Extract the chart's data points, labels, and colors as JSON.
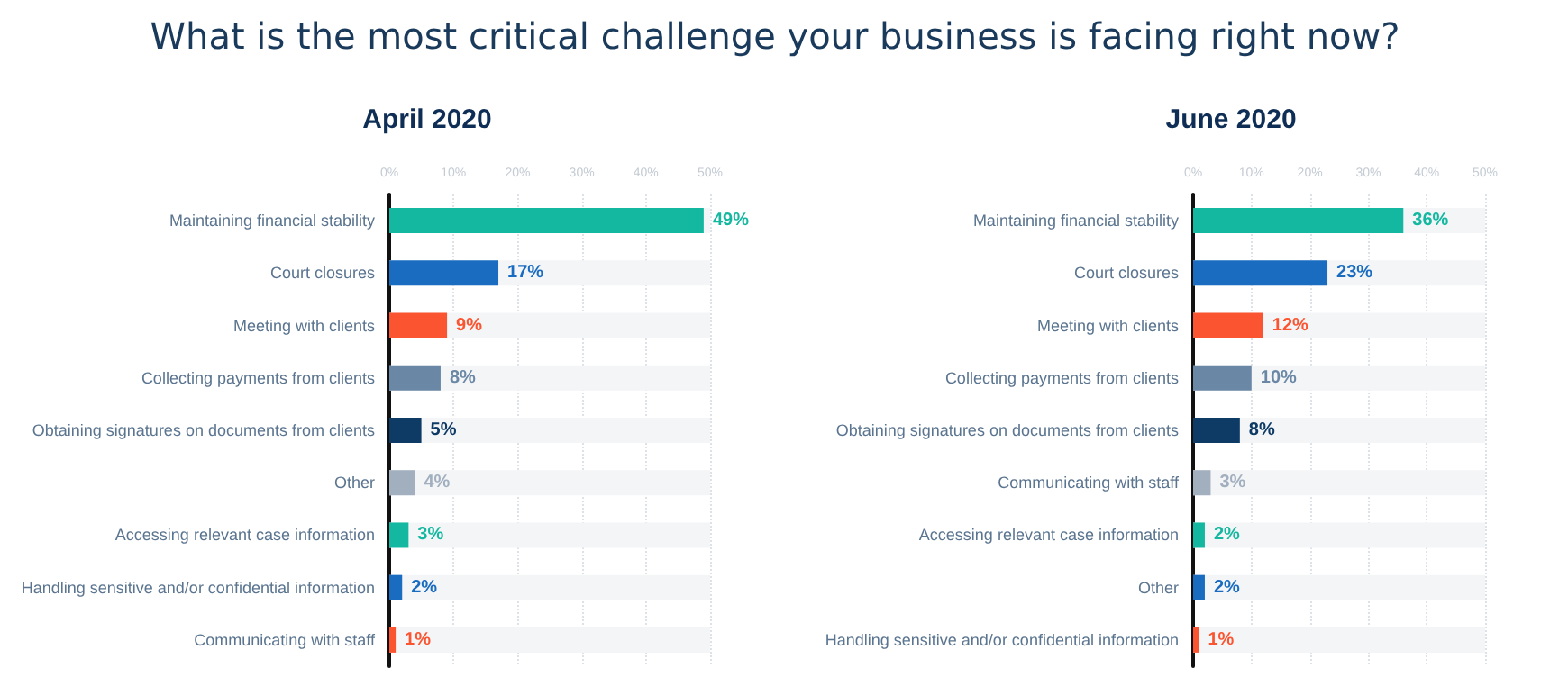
{
  "chart_data": [
    {
      "type": "bar",
      "orientation": "horizontal",
      "title": "April 2020",
      "annotations": [
        "What is the most critical challenge your business is facing right now?"
      ],
      "categories": [
        "Maintaining financial stability",
        "Court closures",
        "Meeting with clients",
        "Collecting payments from clients",
        "Obtaining signatures on documents from clients",
        "Other",
        "Accessing relevant case information",
        "Handling sensitive and/or confidential information",
        "Communicating with staff"
      ],
      "values": [
        49,
        17,
        9,
        8,
        5,
        4,
        3,
        2,
        1
      ],
      "colors": [
        "#14b8a0",
        "#1a6cc0",
        "#fb5430",
        "#6a88a6",
        "#0e3a66",
        "#a2afbf",
        "#14b8a0",
        "#1a6cc0",
        "#fb5430"
      ],
      "value_labels": [
        "49%",
        "17%",
        "9%",
        "8%",
        "5%",
        "4%",
        "3%",
        "2%",
        "1%"
      ],
      "xlim": [
        0,
        50
      ],
      "xticks": [
        {
          "value": 0,
          "label": "0%"
        },
        {
          "value": 10,
          "label": "10%"
        },
        {
          "value": 20,
          "label": "20%"
        },
        {
          "value": 30,
          "label": "30%"
        },
        {
          "value": 40,
          "label": "40%"
        },
        {
          "value": 50,
          "label": "50%"
        }
      ],
      "grid": "x"
    },
    {
      "type": "bar",
      "orientation": "horizontal",
      "title": "June 2020",
      "categories": [
        "Maintaining financial stability",
        "Court closures",
        "Meeting with clients",
        "Collecting payments from clients",
        "Obtaining signatures on documents from clients",
        "Communicating with staff",
        "Accessing relevant case information",
        "Other",
        "Handling sensitive and/or confidential information"
      ],
      "values": [
        36,
        23,
        12,
        10,
        8,
        3,
        2,
        2,
        1
      ],
      "colors": [
        "#14b8a0",
        "#1a6cc0",
        "#fb5430",
        "#6a88a6",
        "#0e3a66",
        "#a2afbf",
        "#14b8a0",
        "#1a6cc0",
        "#fb5430"
      ],
      "value_labels": [
        "36%",
        "23%",
        "12%",
        "10%",
        "8%",
        "3%",
        "2%",
        "2%",
        "1%"
      ],
      "xlim": [
        0,
        50
      ],
      "xticks": [
        {
          "value": 0,
          "label": "0%"
        },
        {
          "value": 10,
          "label": "10%"
        },
        {
          "value": 20,
          "label": "20%"
        },
        {
          "value": 30,
          "label": "30%"
        },
        {
          "value": 40,
          "label": "40%"
        },
        {
          "value": 50,
          "label": "50%"
        }
      ],
      "grid": "x"
    }
  ]
}
